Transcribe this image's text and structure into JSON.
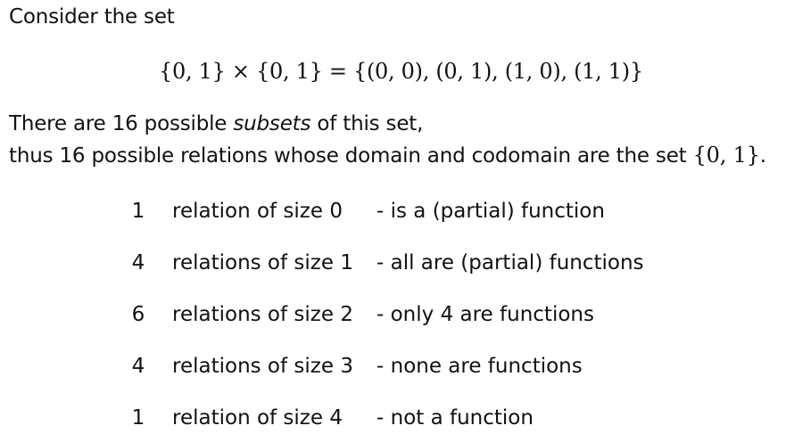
{
  "intro": "Consider the set",
  "equation": "{0, 1} × {0, 1} = {(0, 0), (0, 1), (1, 0), (1, 1)}",
  "paragraph": {
    "line1_before": "There are 16 possible ",
    "line1_emph": "subsets",
    "line1_after": " of this set,",
    "line2_before": "thus 16 possible relations whose domain and codomain are the set ",
    "line2_math": "{0, 1}",
    "line2_after": "."
  },
  "relations": [
    {
      "count": "1",
      "label": "relation of size 0",
      "note": "- is a (partial) function"
    },
    {
      "count": "4",
      "label": "relations of size 1",
      "note": "- all are (partial) functions"
    },
    {
      "count": "6",
      "label": "relations of size 2",
      "note": "- only 4 are functions"
    },
    {
      "count": "4",
      "label": "relations of size 3",
      "note": "- none are functions"
    },
    {
      "count": "1",
      "label": "relation of size 4",
      "note": "- not a function"
    }
  ]
}
